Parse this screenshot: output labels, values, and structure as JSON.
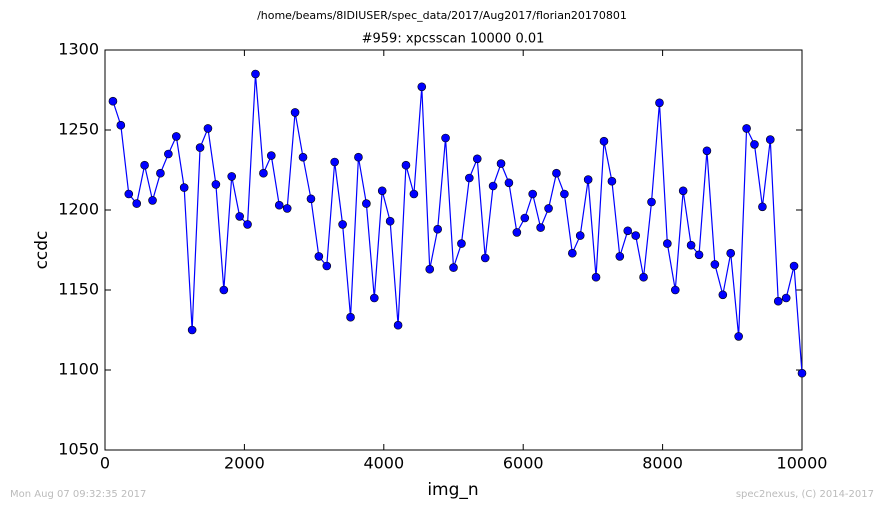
{
  "chart_data": {
    "type": "line",
    "header": "/home/beams/8IDIUSER/spec_data/2017/Aug2017/florian20170801",
    "title": "#959: xpcsscan 10000 0.01",
    "xlabel": "img_n",
    "ylabel": "ccdc",
    "footer_left": "Mon Aug 07 09:32:35 2017",
    "footer_right": "spec2nexus, (C) 2014-2017",
    "xlim": [
      0,
      10000
    ],
    "xticks": [
      0,
      2000,
      4000,
      6000,
      8000,
      10000
    ],
    "ylim": [
      1050,
      1300
    ],
    "yticks": [
      1050,
      1100,
      1150,
      1200,
      1250,
      1300
    ],
    "grid": false,
    "marker": "circle",
    "x": [
      114,
      227,
      341,
      455,
      568,
      682,
      795,
      909,
      1023,
      1136,
      1250,
      1364,
      1477,
      1591,
      1705,
      1818,
      1932,
      2045,
      2159,
      2273,
      2386,
      2500,
      2614,
      2727,
      2841,
      2955,
      3068,
      3182,
      3295,
      3409,
      3523,
      3636,
      3750,
      3864,
      3977,
      4091,
      4205,
      4318,
      4432,
      4545,
      4659,
      4773,
      4886,
      5000,
      5114,
      5227,
      5341,
      5455,
      5568,
      5682,
      5795,
      5909,
      6023,
      6136,
      6250,
      6364,
      6477,
      6591,
      6705,
      6818,
      6932,
      7045,
      7159,
      7273,
      7386,
      7500,
      7614,
      7727,
      7841,
      7955,
      8068,
      8182,
      8295,
      8409,
      8523,
      8636,
      8750,
      8864,
      8977,
      9091,
      9205,
      9318,
      9432,
      9545,
      9659,
      9773,
      9886,
      10000
    ],
    "series": [
      {
        "color": "#0000ff",
        "values": [
          1268,
          1253,
          1210,
          1204,
          1228,
          1206,
          1223,
          1235,
          1246,
          1214,
          1125,
          1239,
          1251,
          1216,
          1150,
          1221,
          1196,
          1191,
          1285,
          1223,
          1234,
          1203,
          1201,
          1261,
          1233,
          1207,
          1171,
          1165,
          1230,
          1191,
          1133,
          1233,
          1204,
          1145,
          1212,
          1193,
          1128,
          1228,
          1210,
          1277,
          1163,
          1188,
          1245,
          1164,
          1179,
          1220,
          1232,
          1170,
          1215,
          1229,
          1217,
          1186,
          1195,
          1210,
          1189,
          1201,
          1223,
          1210,
          1173,
          1184,
          1219,
          1158,
          1243,
          1218,
          1171,
          1187,
          1184,
          1158,
          1205,
          1267,
          1179,
          1150,
          1212,
          1178,
          1172,
          1237,
          1166,
          1147,
          1173,
          1121,
          1251,
          1241,
          1202,
          1244,
          1143,
          1145,
          1165,
          1098
        ]
      }
    ]
  }
}
